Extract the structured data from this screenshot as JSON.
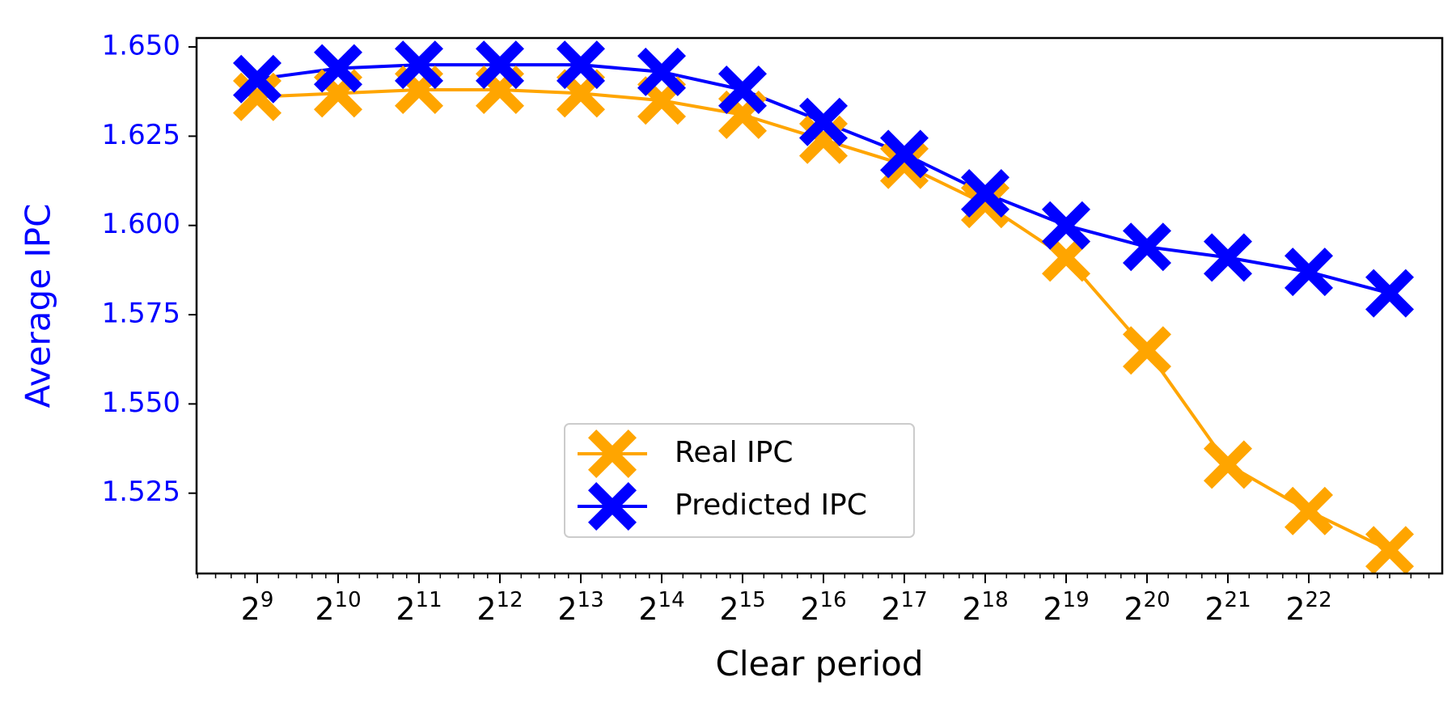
{
  "chart_data": {
    "type": "line",
    "xlabel": "Clear period",
    "ylabel": "Average IPC",
    "x_exponents": [
      9,
      10,
      11,
      12,
      13,
      14,
      15,
      16,
      17,
      18,
      19,
      20,
      21,
      22,
      23
    ],
    "x_tick_labels": [
      {
        "base": "2",
        "exp": "9"
      },
      {
        "base": "2",
        "exp": "10"
      },
      {
        "base": "2",
        "exp": "11"
      },
      {
        "base": "2",
        "exp": "12"
      },
      {
        "base": "2",
        "exp": "13"
      },
      {
        "base": "2",
        "exp": "14"
      },
      {
        "base": "2",
        "exp": "15"
      },
      {
        "base": "2",
        "exp": "16"
      },
      {
        "base": "2",
        "exp": "17"
      },
      {
        "base": "2",
        "exp": "18"
      },
      {
        "base": "2",
        "exp": "19"
      },
      {
        "base": "2",
        "exp": "20"
      },
      {
        "base": "2",
        "exp": "21"
      },
      {
        "base": "2",
        "exp": "22"
      }
    ],
    "x_scale": "log2",
    "ylim": [
      1.5025,
      1.6525
    ],
    "y_ticks": [
      "1.650",
      "1.625",
      "1.600",
      "1.575",
      "1.550",
      "1.525"
    ],
    "y_tick_values": [
      1.65,
      1.625,
      1.6,
      1.575,
      1.55,
      1.525
    ],
    "grid": false,
    "legend_position": "lower-center",
    "series": [
      {
        "name": "Real IPC",
        "color": "#FFA500",
        "marker": "X",
        "values": [
          1.636,
          1.637,
          1.638,
          1.638,
          1.637,
          1.635,
          1.631,
          1.624,
          1.617,
          1.606,
          1.591,
          1.565,
          1.533,
          1.52,
          1.509
        ]
      },
      {
        "name": "Predicted IPC",
        "color": "#0000FF",
        "marker": "X",
        "values": [
          1.641,
          1.644,
          1.645,
          1.645,
          1.645,
          1.643,
          1.638,
          1.629,
          1.62,
          1.609,
          1.6,
          1.594,
          1.591,
          1.587,
          1.581
        ]
      }
    ],
    "axis_label_color": "#0000FF"
  }
}
